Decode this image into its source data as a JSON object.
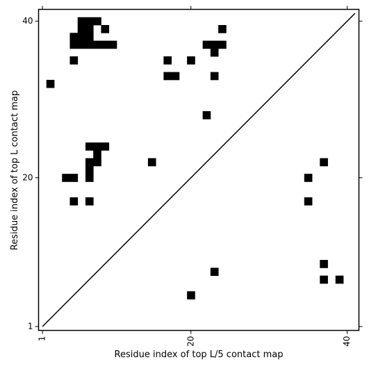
{
  "chart_data": {
    "type": "heatmap",
    "title": "",
    "xlabel": "Residue index of top L/5 contact map",
    "ylabel": "Residue index of top L contact map",
    "xlim": [
      0.5,
      41.5
    ],
    "ylim": [
      0.5,
      41.5
    ],
    "xticks": [
      1,
      20,
      40
    ],
    "yticks": [
      1,
      20,
      40
    ],
    "xtick_labels": [
      "1",
      "20",
      "40"
    ],
    "ytick_labels": [
      "1",
      "20",
      "40"
    ],
    "xtick_rotation": -90,
    "diagonal": {
      "from": [
        1,
        1
      ],
      "to": [
        41,
        41
      ]
    },
    "cell_color": "#000000",
    "background_color": "#ffffff",
    "cells": [
      [
        6,
        40
      ],
      [
        7,
        40
      ],
      [
        8,
        40
      ],
      [
        6,
        39
      ],
      [
        7,
        39
      ],
      [
        9,
        39
      ],
      [
        24,
        39
      ],
      [
        5,
        38
      ],
      [
        6,
        38
      ],
      [
        7,
        38
      ],
      [
        5,
        37
      ],
      [
        6,
        37
      ],
      [
        7,
        37
      ],
      [
        8,
        37
      ],
      [
        9,
        37
      ],
      [
        10,
        37
      ],
      [
        22,
        37
      ],
      [
        23,
        37
      ],
      [
        24,
        37
      ],
      [
        23,
        36
      ],
      [
        5,
        35
      ],
      [
        17,
        35
      ],
      [
        20,
        35
      ],
      [
        17,
        33
      ],
      [
        18,
        33
      ],
      [
        23,
        33
      ],
      [
        2,
        32
      ],
      [
        22,
        28
      ],
      [
        7,
        24
      ],
      [
        8,
        24
      ],
      [
        9,
        24
      ],
      [
        8,
        23
      ],
      [
        7,
        22
      ],
      [
        8,
        22
      ],
      [
        15,
        22
      ],
      [
        37,
        22
      ],
      [
        7,
        21
      ],
      [
        4,
        20
      ],
      [
        5,
        20
      ],
      [
        7,
        20
      ],
      [
        35,
        20
      ],
      [
        5,
        17
      ],
      [
        7,
        17
      ],
      [
        35,
        17
      ],
      [
        37,
        9
      ],
      [
        23,
        8
      ],
      [
        37,
        7
      ],
      [
        39,
        7
      ],
      [
        20,
        5
      ]
    ]
  }
}
